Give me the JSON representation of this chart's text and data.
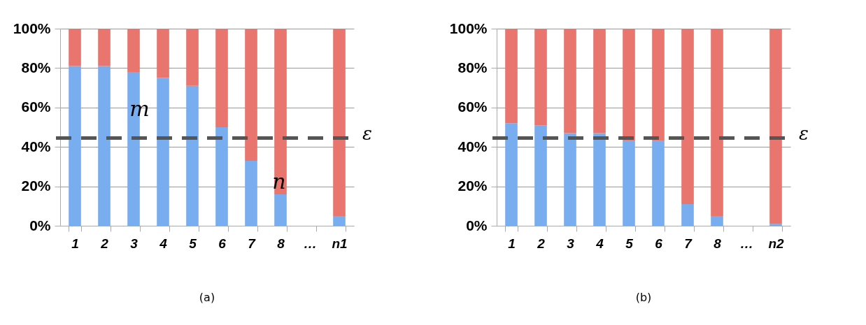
{
  "chart_data": [
    {
      "type": "bar",
      "title": "(a)",
      "stacked": true,
      "categories": [
        "1",
        "2",
        "3",
        "4",
        "5",
        "6",
        "7",
        "8",
        "…",
        "n1"
      ],
      "series": [
        {
          "color": "#78aef0",
          "values": [
            81,
            81,
            78,
            75,
            71,
            50,
            33,
            16,
            null,
            5
          ]
        },
        {
          "color": "#e8756e",
          "values": [
            19,
            19,
            22,
            25,
            29,
            50,
            67,
            84,
            null,
            95
          ]
        }
      ],
      "ylim": [
        0,
        100
      ],
      "yticks": [
        {
          "value": 0,
          "label": "0%"
        },
        {
          "value": 20,
          "label": "20%"
        },
        {
          "value": 40,
          "label": "40%"
        },
        {
          "value": 60,
          "label": "60%"
        },
        {
          "value": 80,
          "label": "80%"
        },
        {
          "value": 100,
          "label": "100%"
        }
      ],
      "grid": "y",
      "ref_lines": [
        {
          "axis": "y",
          "value": 44.5,
          "label": "ε",
          "color": "#555555",
          "line_style": "dashed"
        }
      ],
      "annotations": [
        "m",
        "n"
      ]
    },
    {
      "type": "bar",
      "title": "(b)",
      "stacked": true,
      "categories": [
        "1",
        "2",
        "3",
        "4",
        "5",
        "6",
        "7",
        "8",
        "…",
        "n2"
      ],
      "series": [
        {
          "color": "#78aef0",
          "values": [
            52,
            51,
            47,
            47,
            43,
            43,
            11,
            5,
            null,
            1
          ]
        },
        {
          "color": "#e8756e",
          "values": [
            48,
            49,
            53,
            53,
            57,
            57,
            89,
            95,
            null,
            99
          ]
        }
      ],
      "ylim": [
        0,
        100
      ],
      "yticks": [
        {
          "value": 0,
          "label": "0%"
        },
        {
          "value": 20,
          "label": "20%"
        },
        {
          "value": 40,
          "label": "40%"
        },
        {
          "value": 60,
          "label": "60%"
        },
        {
          "value": 80,
          "label": "80%"
        },
        {
          "value": 100,
          "label": "100%"
        }
      ],
      "grid": "y",
      "ref_lines": [
        {
          "axis": "y",
          "value": 44.5,
          "label": "ε",
          "color": "#555555",
          "line_style": "dashed"
        }
      ]
    }
  ]
}
